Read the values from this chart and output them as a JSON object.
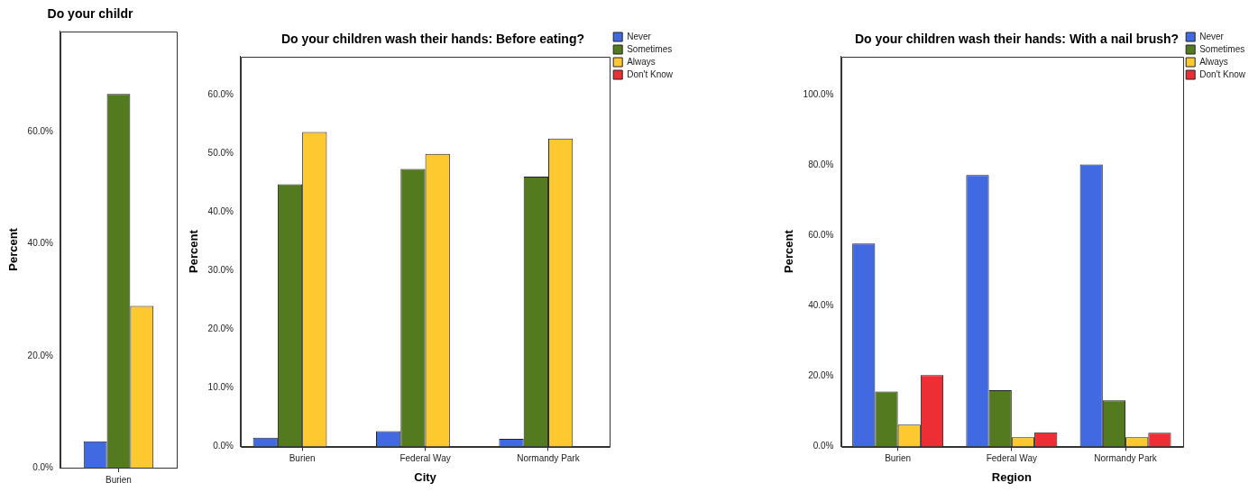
{
  "chart_data": [
    {
      "type": "bar",
      "title": "Do your childr",
      "ylabel": "Percent",
      "categories": [
        "Burien"
      ],
      "series": [
        {
          "color": "#4169e1",
          "values": [
            4.7
          ]
        },
        {
          "color": "#537a1e",
          "values": [
            66.8
          ]
        },
        {
          "color": "#fdc92f",
          "values": [
            28.9
          ]
        }
      ],
      "ylim": [
        0,
        78
      ],
      "yticks": [
        {
          "value": 0,
          "label": "0.0%"
        },
        {
          "value": 20,
          "label": "20.0%"
        },
        {
          "value": 40,
          "label": "40.0%"
        },
        {
          "value": 60,
          "label": "60.0%"
        }
      ],
      "grid": false,
      "legend": false
    },
    {
      "type": "bar",
      "title": "Do your children wash their hands: Before eating?",
      "xlabel": "City",
      "ylabel": "Percent",
      "categories": [
        "Burien",
        "Federal Way",
        "Normandy Park"
      ],
      "series": [
        {
          "name": "Never",
          "color": "#4169e1",
          "values": [
            1.5,
            2.6,
            1.3
          ]
        },
        {
          "name": "Sometimes",
          "color": "#537a1e",
          "values": [
            44.8,
            47.4,
            46.1
          ]
        },
        {
          "name": "Always",
          "color": "#fdc92f",
          "values": [
            53.7,
            50.0,
            52.6
          ]
        },
        {
          "name": "Don't Know",
          "color": "#ee2e35",
          "values": [
            null,
            null,
            null
          ]
        }
      ],
      "ylim": [
        0,
        66.6
      ],
      "yticks": [
        {
          "value": 0,
          "label": "0.0%"
        },
        {
          "value": 10,
          "label": "10.0%"
        },
        {
          "value": 20,
          "label": "20.0%"
        },
        {
          "value": 30,
          "label": "30.0%"
        },
        {
          "value": 40,
          "label": "40.0%"
        },
        {
          "value": 50,
          "label": "50.0%"
        },
        {
          "value": 60,
          "label": "60.0%"
        }
      ],
      "grid": false,
      "legend": "right"
    },
    {
      "type": "bar",
      "title": "Do your children wash their hands: With a nail brush?",
      "xlabel": "Region",
      "ylabel": "Percent",
      "categories": [
        "Burien",
        "Federal Way",
        "Normandy Park"
      ],
      "series": [
        {
          "name": "Never",
          "color": "#4169e1",
          "values": [
            57.8,
            77.3,
            80.3
          ]
        },
        {
          "name": "Sometimes",
          "color": "#537a1e",
          "values": [
            15.6,
            16.0,
            13.1
          ]
        },
        {
          "name": "Always",
          "color": "#fdc92f",
          "values": [
            6.2,
            2.6,
            2.6
          ]
        },
        {
          "name": "Don't Know",
          "color": "#ee2e35",
          "values": [
            20.3,
            4.0,
            3.9
          ]
        }
      ],
      "ylim": [
        0,
        111
      ],
      "yticks": [
        {
          "value": 0,
          "label": "0.0%"
        },
        {
          "value": 20,
          "label": "20.0%"
        },
        {
          "value": 40,
          "label": "40.0%"
        },
        {
          "value": 60,
          "label": "60.0%"
        },
        {
          "value": 80,
          "label": "80.0%"
        },
        {
          "value": 100,
          "label": "100.0%"
        }
      ],
      "grid": false,
      "legend": "right"
    }
  ]
}
